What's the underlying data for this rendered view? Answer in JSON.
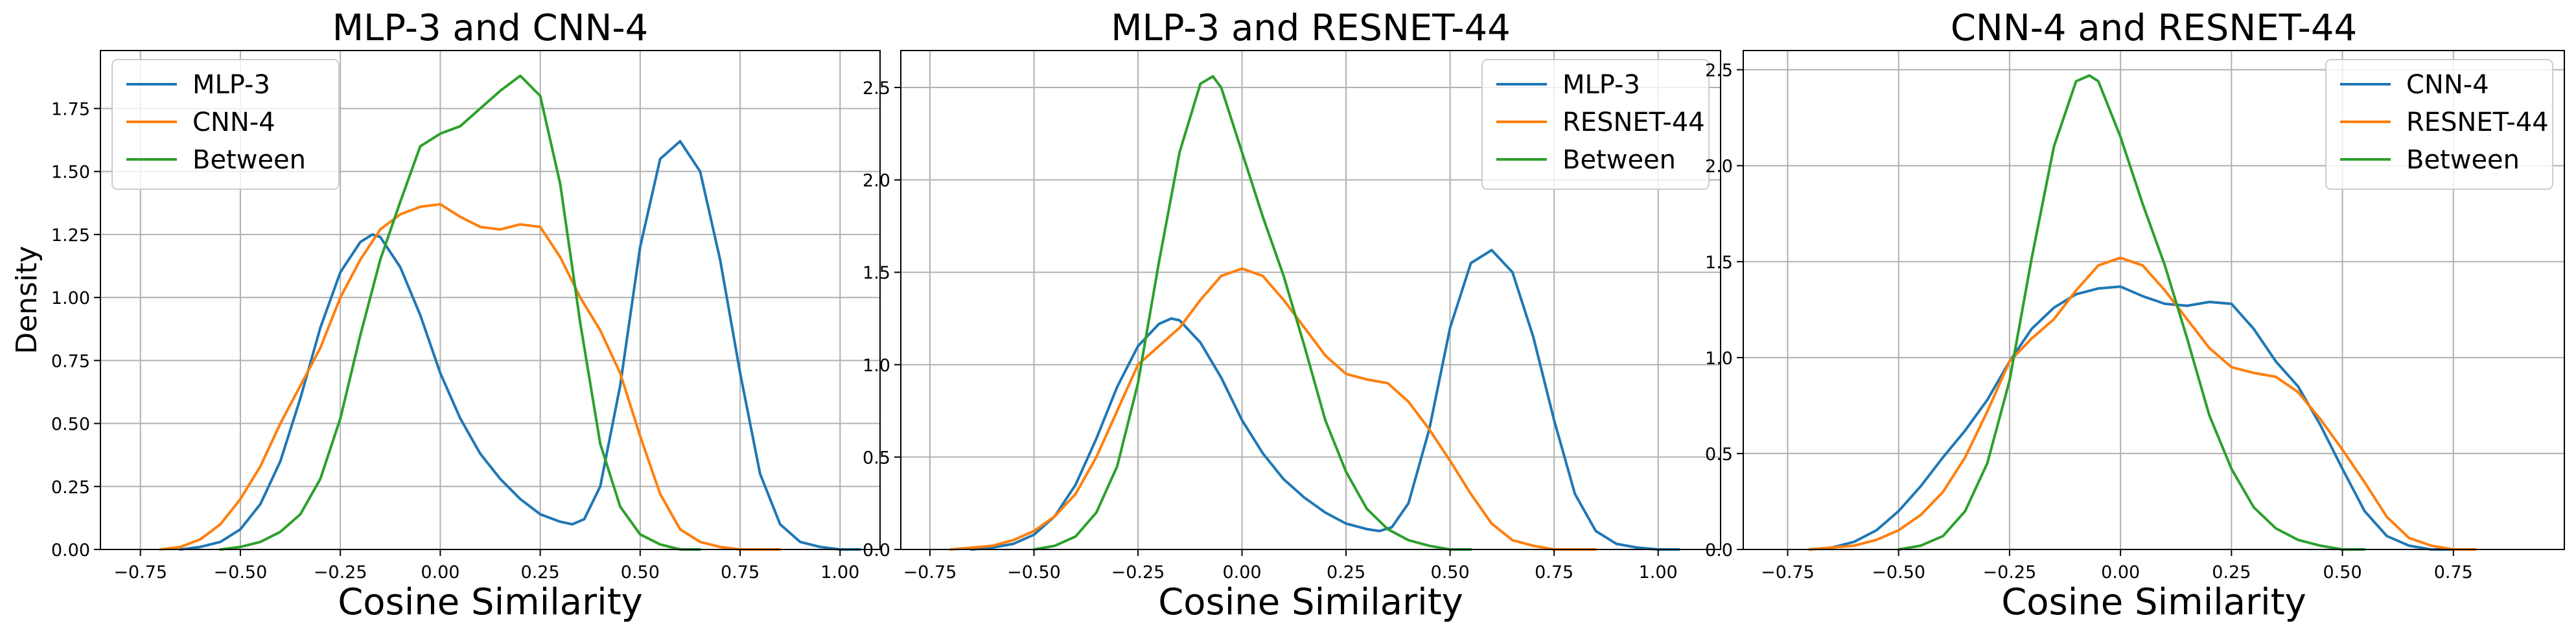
{
  "colors": {
    "blue": "#1f77b4",
    "orange": "#ff7f0e",
    "green": "#2ca02c"
  },
  "chart_data": [
    {
      "type": "line",
      "title": "MLP-3 and CNN-4",
      "xlabel": "Cosine Similarity",
      "ylabel": "Density",
      "xlim": [
        -0.85,
        1.1
      ],
      "ylim": [
        0,
        1.98
      ],
      "xticks": [
        -0.75,
        -0.5,
        -0.25,
        0,
        0.25,
        0.5,
        0.75,
        1.0
      ],
      "xtick_labels": [
        "−0.75",
        "−0.50",
        "−0.25",
        "0.00",
        "0.25",
        "0.50",
        "0.75",
        "1.00"
      ],
      "yticks": [
        0,
        0.25,
        0.5,
        0.75,
        1.0,
        1.25,
        1.5,
        1.75
      ],
      "ytick_labels": [
        "0.00",
        "0.25",
        "0.50",
        "0.75",
        "1.00",
        "1.25",
        "1.50",
        "1.75"
      ],
      "grid": true,
      "legend_position": "top-left",
      "series": [
        {
          "name": "MLP-3",
          "color": "#1f77b4",
          "x": [
            -0.65,
            -0.6,
            -0.55,
            -0.5,
            -0.45,
            -0.4,
            -0.35,
            -0.3,
            -0.25,
            -0.2,
            -0.17,
            -0.15,
            -0.1,
            -0.05,
            0.0,
            0.05,
            0.1,
            0.15,
            0.2,
            0.25,
            0.3,
            0.33,
            0.36,
            0.4,
            0.45,
            0.5,
            0.55,
            0.6,
            0.65,
            0.7,
            0.75,
            0.8,
            0.85,
            0.9,
            0.95,
            1.0,
            1.05
          ],
          "y": [
            0.0,
            0.01,
            0.03,
            0.08,
            0.18,
            0.35,
            0.6,
            0.88,
            1.1,
            1.22,
            1.25,
            1.24,
            1.12,
            0.93,
            0.7,
            0.52,
            0.38,
            0.28,
            0.2,
            0.14,
            0.11,
            0.1,
            0.12,
            0.25,
            0.65,
            1.2,
            1.55,
            1.62,
            1.5,
            1.15,
            0.7,
            0.3,
            0.1,
            0.03,
            0.01,
            0.0,
            0.0
          ]
        },
        {
          "name": "CNN-4",
          "color": "#ff7f0e",
          "x": [
            -0.7,
            -0.65,
            -0.6,
            -0.55,
            -0.5,
            -0.45,
            -0.4,
            -0.35,
            -0.3,
            -0.25,
            -0.2,
            -0.15,
            -0.1,
            -0.05,
            0.0,
            0.05,
            0.1,
            0.15,
            0.2,
            0.25,
            0.3,
            0.35,
            0.4,
            0.45,
            0.5,
            0.55,
            0.6,
            0.65,
            0.7,
            0.75,
            0.8,
            0.85
          ],
          "y": [
            0.0,
            0.01,
            0.04,
            0.1,
            0.2,
            0.33,
            0.5,
            0.65,
            0.8,
            1.0,
            1.15,
            1.27,
            1.33,
            1.36,
            1.37,
            1.32,
            1.28,
            1.27,
            1.29,
            1.28,
            1.16,
            1.0,
            0.87,
            0.7,
            0.45,
            0.22,
            0.08,
            0.03,
            0.01,
            0.0,
            0.0,
            0.0
          ]
        },
        {
          "name": "Between",
          "color": "#2ca02c",
          "x": [
            -0.55,
            -0.5,
            -0.45,
            -0.4,
            -0.35,
            -0.3,
            -0.25,
            -0.2,
            -0.15,
            -0.1,
            -0.05,
            0.0,
            0.05,
            0.1,
            0.15,
            0.2,
            0.25,
            0.3,
            0.35,
            0.4,
            0.45,
            0.5,
            0.55,
            0.6,
            0.65
          ],
          "y": [
            0.0,
            0.01,
            0.03,
            0.07,
            0.14,
            0.28,
            0.52,
            0.85,
            1.15,
            1.38,
            1.6,
            1.65,
            1.68,
            1.75,
            1.82,
            1.88,
            1.8,
            1.45,
            0.9,
            0.42,
            0.17,
            0.06,
            0.02,
            0.0,
            0.0
          ]
        }
      ]
    },
    {
      "type": "line",
      "title": "MLP-3 and RESNET-44",
      "xlabel": "Cosine Similarity",
      "ylabel": "",
      "xlim": [
        -0.82,
        1.15
      ],
      "ylim": [
        0,
        2.7
      ],
      "xticks": [
        -0.75,
        -0.5,
        -0.25,
        0,
        0.25,
        0.5,
        0.75,
        1.0
      ],
      "xtick_labels": [
        "−0.75",
        "−0.50",
        "−0.25",
        "0.00",
        "0.25",
        "0.50",
        "0.75",
        "1.00"
      ],
      "yticks": [
        0,
        0.5,
        1.0,
        1.5,
        2.0,
        2.5
      ],
      "ytick_labels": [
        "0.0",
        "0.5",
        "1.0",
        "1.5",
        "2.0",
        "2.5"
      ],
      "grid": true,
      "legend_position": "top-right",
      "series": [
        {
          "name": "MLP-3",
          "color": "#1f77b4",
          "x": [
            -0.65,
            -0.6,
            -0.55,
            -0.5,
            -0.45,
            -0.4,
            -0.35,
            -0.3,
            -0.25,
            -0.2,
            -0.17,
            -0.15,
            -0.1,
            -0.05,
            0.0,
            0.05,
            0.1,
            0.15,
            0.2,
            0.25,
            0.3,
            0.33,
            0.36,
            0.4,
            0.45,
            0.5,
            0.55,
            0.6,
            0.65,
            0.7,
            0.75,
            0.8,
            0.85,
            0.9,
            0.95,
            1.0,
            1.05
          ],
          "y": [
            0.0,
            0.01,
            0.03,
            0.08,
            0.18,
            0.35,
            0.6,
            0.88,
            1.1,
            1.22,
            1.25,
            1.24,
            1.12,
            0.93,
            0.7,
            0.52,
            0.38,
            0.28,
            0.2,
            0.14,
            0.11,
            0.1,
            0.12,
            0.25,
            0.65,
            1.2,
            1.55,
            1.62,
            1.5,
            1.15,
            0.7,
            0.3,
            0.1,
            0.03,
            0.01,
            0.0,
            0.0
          ]
        },
        {
          "name": "RESNET-44",
          "color": "#ff7f0e",
          "x": [
            -0.7,
            -0.65,
            -0.6,
            -0.55,
            -0.5,
            -0.45,
            -0.4,
            -0.35,
            -0.3,
            -0.25,
            -0.2,
            -0.15,
            -0.1,
            -0.05,
            0.0,
            0.05,
            0.1,
            0.15,
            0.2,
            0.25,
            0.3,
            0.35,
            0.4,
            0.45,
            0.5,
            0.55,
            0.6,
            0.65,
            0.7,
            0.75,
            0.8,
            0.85
          ],
          "y": [
            0.0,
            0.01,
            0.02,
            0.05,
            0.1,
            0.18,
            0.3,
            0.5,
            0.75,
            1.0,
            1.1,
            1.2,
            1.35,
            1.48,
            1.52,
            1.48,
            1.35,
            1.2,
            1.05,
            0.95,
            0.92,
            0.9,
            0.8,
            0.65,
            0.48,
            0.3,
            0.14,
            0.05,
            0.02,
            0.0,
            0.0,
            0.0
          ]
        },
        {
          "name": "Between",
          "color": "#2ca02c",
          "x": [
            -0.5,
            -0.45,
            -0.4,
            -0.35,
            -0.3,
            -0.25,
            -0.2,
            -0.15,
            -0.1,
            -0.07,
            -0.05,
            0.0,
            0.05,
            0.1,
            0.15,
            0.2,
            0.25,
            0.3,
            0.35,
            0.4,
            0.45,
            0.5,
            0.55
          ],
          "y": [
            0.0,
            0.02,
            0.07,
            0.2,
            0.45,
            0.9,
            1.55,
            2.15,
            2.52,
            2.56,
            2.5,
            2.15,
            1.8,
            1.48,
            1.1,
            0.7,
            0.42,
            0.22,
            0.11,
            0.05,
            0.02,
            0.0,
            0.0
          ]
        }
      ]
    },
    {
      "type": "line",
      "title": "CNN-4 and RESNET-44",
      "xlabel": "Cosine Similarity",
      "ylabel": "",
      "xlim": [
        -0.85,
        1.0
      ],
      "ylim": [
        0,
        2.6
      ],
      "xticks": [
        -0.75,
        -0.5,
        -0.25,
        0,
        0.25,
        0.5,
        0.75
      ],
      "xtick_labels": [
        "−0.75",
        "−0.50",
        "−0.25",
        "0.00",
        "0.25",
        "0.50",
        "0.75"
      ],
      "yticks": [
        0,
        0.5,
        1.0,
        1.5,
        2.0,
        2.5
      ],
      "ytick_labels": [
        "0.0",
        "0.5",
        "1.0",
        "1.5",
        "2.0",
        "2.5"
      ],
      "grid": true,
      "legend_position": "top-right",
      "series": [
        {
          "name": "CNN-4",
          "color": "#1f77b4",
          "x": [
            -0.7,
            -0.65,
            -0.6,
            -0.55,
            -0.5,
            -0.45,
            -0.4,
            -0.35,
            -0.3,
            -0.25,
            -0.2,
            -0.15,
            -0.1,
            -0.05,
            0.0,
            0.05,
            0.1,
            0.15,
            0.2,
            0.25,
            0.3,
            0.35,
            0.4,
            0.45,
            0.5,
            0.55,
            0.6,
            0.65,
            0.7,
            0.75
          ],
          "y": [
            0.0,
            0.01,
            0.04,
            0.1,
            0.2,
            0.33,
            0.48,
            0.62,
            0.78,
            0.98,
            1.15,
            1.26,
            1.33,
            1.36,
            1.37,
            1.32,
            1.28,
            1.27,
            1.29,
            1.28,
            1.15,
            0.98,
            0.85,
            0.65,
            0.42,
            0.2,
            0.07,
            0.02,
            0.0,
            0.0
          ]
        },
        {
          "name": "RESNET-44",
          "color": "#ff7f0e",
          "x": [
            -0.7,
            -0.65,
            -0.6,
            -0.55,
            -0.5,
            -0.45,
            -0.4,
            -0.35,
            -0.3,
            -0.25,
            -0.2,
            -0.15,
            -0.1,
            -0.05,
            0.0,
            0.05,
            0.1,
            0.15,
            0.2,
            0.25,
            0.3,
            0.35,
            0.4,
            0.45,
            0.5,
            0.55,
            0.6,
            0.65,
            0.7,
            0.75,
            0.8
          ],
          "y": [
            0.0,
            0.01,
            0.02,
            0.05,
            0.1,
            0.18,
            0.3,
            0.48,
            0.72,
            0.98,
            1.1,
            1.2,
            1.35,
            1.48,
            1.52,
            1.48,
            1.35,
            1.2,
            1.05,
            0.95,
            0.92,
            0.9,
            0.82,
            0.68,
            0.52,
            0.35,
            0.17,
            0.06,
            0.02,
            0.0,
            0.0
          ]
        },
        {
          "name": "Between",
          "color": "#2ca02c",
          "x": [
            -0.5,
            -0.45,
            -0.4,
            -0.35,
            -0.3,
            -0.25,
            -0.2,
            -0.15,
            -0.1,
            -0.07,
            -0.05,
            0.0,
            0.05,
            0.1,
            0.15,
            0.2,
            0.25,
            0.3,
            0.35,
            0.4,
            0.45,
            0.5,
            0.55
          ],
          "y": [
            0.0,
            0.02,
            0.07,
            0.2,
            0.45,
            0.88,
            1.52,
            2.1,
            2.44,
            2.47,
            2.44,
            2.15,
            1.8,
            1.48,
            1.1,
            0.7,
            0.42,
            0.22,
            0.11,
            0.05,
            0.02,
            0.0,
            0.0
          ]
        }
      ]
    }
  ]
}
